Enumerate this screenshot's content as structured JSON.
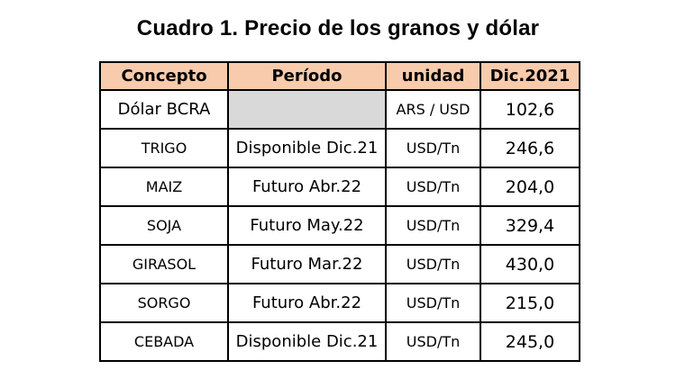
{
  "title": "Cuadro 1. Precio de los granos y dólar",
  "table": {
    "headers": [
      "Concepto",
      "Período",
      "unidad",
      "Dic.2021"
    ],
    "rows": [
      {
        "concepto": "Dólar BCRA",
        "periodo": "",
        "unidad": "ARS / USD",
        "valor": "102,6"
      },
      {
        "concepto": "TRIGO",
        "periodo": "Disponible Dic.21",
        "unidad": "USD/Tn",
        "valor": "246,6"
      },
      {
        "concepto": "MAIZ",
        "periodo": "Futuro Abr.22",
        "unidad": "USD/Tn",
        "valor": "204,0"
      },
      {
        "concepto": "SOJA",
        "periodo": "Futuro May.22",
        "unidad": "USD/Tn",
        "valor": "329,4"
      },
      {
        "concepto": "GIRASOL",
        "periodo": "Futuro Mar.22",
        "unidad": "USD/Tn",
        "valor": "430,0"
      },
      {
        "concepto": "SORGO",
        "periodo": "Futuro Abr.22",
        "unidad": "USD/Tn",
        "valor": "215,0"
      },
      {
        "concepto": "CEBADA",
        "periodo": "Disponible Dic.21",
        "unidad": "USD/Tn",
        "valor": "245,0"
      }
    ]
  },
  "colors": {
    "header_bg": "#f8cbad",
    "empty_cell_bg": "#d9d9d9",
    "border": "#000000"
  }
}
